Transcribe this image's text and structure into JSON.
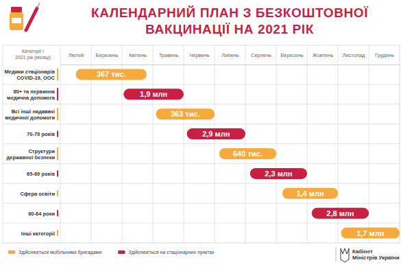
{
  "chart_data": {
    "type": "timeline",
    "orientation": "horizontal",
    "title": "КАЛЕНДАРНИЙ ПЛАН З БЕЗКОШТОВНОЇ\nВАКЦИНАЦІЇ НА 2021 РІК",
    "ylabel": "Категорії /\n2021 рік (місяці)",
    "source": "Кабінет\nМіністрів України",
    "categories": [
      "Медики стаціонарів\nCOVID-19, ООС",
      "80+ та первинна\nмедична допомога",
      "Всі інші надавачі\nмедичної допомоги",
      "70-79 років",
      "Структури\nдержавної безпеки",
      "65-69 років",
      "Сфера освіти",
      "60-64 роки",
      "Інші категорії"
    ],
    "xlim": [
      0,
      11
    ],
    "xticks": [
      {
        "value": 0.5,
        "label": "Лютий"
      },
      {
        "value": 1.5,
        "label": "Березень"
      },
      {
        "value": 2.5,
        "label": "Квітень"
      },
      {
        "value": 3.5,
        "label": "Травень"
      },
      {
        "value": 4.5,
        "label": "Червень"
      },
      {
        "value": 5.5,
        "label": "Липень"
      },
      {
        "value": 6.5,
        "label": "Серпень"
      },
      {
        "value": 7.5,
        "label": "Вересень"
      },
      {
        "value": 8.5,
        "label": "Жовтень"
      },
      {
        "value": 9.5,
        "label": "Листопад"
      },
      {
        "value": 10.5,
        "label": "Грудень"
      }
    ],
    "data_labels": true,
    "legend": "bottom-left",
    "series": [
      {
        "name": "Здійснюється мобільними бригадами",
        "color": "#f6aa3d",
        "start": [
          0.5,
          null,
          3.1,
          null,
          5.15,
          null,
          7.2,
          null,
          9.1
        ],
        "end": [
          2.8,
          null,
          5.0,
          null,
          7.0,
          null,
          9.0,
          null,
          11.0
        ],
        "people": [
          367000,
          null,
          363000,
          null,
          640000,
          null,
          1400000,
          null,
          1700000
        ],
        "people_labels": [
          "367 тис.",
          null,
          "363 тис.",
          null,
          "640 тис.",
          null,
          "1,4 млн",
          null,
          "1,7 млн"
        ]
      },
      {
        "name": "Здійснюється на стаціонарних пунктах",
        "color": "#c81f43",
        "start": [
          null,
          2.05,
          null,
          4.1,
          null,
          6.15,
          null,
          8.15,
          null
        ],
        "end": [
          null,
          4.0,
          null,
          6.0,
          null,
          8.0,
          null,
          10.0,
          null
        ],
        "people": [
          null,
          1900000,
          null,
          2900000,
          null,
          2300000,
          null,
          2800000,
          null
        ],
        "people_labels": [
          null,
          "1,9 млн",
          null,
          "2,9 млн",
          null,
          "2,3 млн",
          null,
          "2,8 млн",
          null
        ]
      }
    ]
  }
}
